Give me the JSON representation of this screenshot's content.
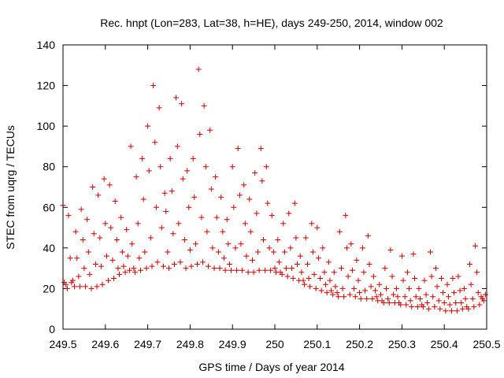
{
  "chart_data": {
    "type": "scatter",
    "title": "Rec. hnpt (Lon=283, Lat=38, h=HE), days 249-250, 2014, window 002",
    "xlabel": "GPS time / Days of year 2014",
    "ylabel": "STEC from uqrg / TECUs",
    "xlim": [
      249.5,
      250.5
    ],
    "ylim": [
      0,
      140
    ],
    "xticks": [
      249.5,
      249.6,
      249.7,
      249.8,
      249.9,
      250,
      250.1,
      250.2,
      250.3,
      250.4,
      250.5
    ],
    "xtick_labels": [
      "249.5",
      "249.6",
      "249.7",
      "249.8",
      "249.9",
      "250",
      "250.1",
      "250.2",
      "250.3",
      "250.4",
      "250.5"
    ],
    "yticks": [
      0,
      20,
      40,
      60,
      80,
      100,
      120,
      140
    ],
    "ytick_labels": [
      "0",
      "20",
      "40",
      "60",
      "80",
      "100",
      "120",
      "140"
    ],
    "grid": false,
    "marker": "+",
    "color": "#cc0000",
    "series": [
      {
        "name": "STEC",
        "points": [
          [
            249.5,
            61
          ],
          [
            249.503,
            23
          ],
          [
            249.507,
            22
          ],
          [
            249.51,
            20
          ],
          [
            249.513,
            56
          ],
          [
            249.517,
            35
          ],
          [
            249.52,
            23
          ],
          [
            249.523,
            24
          ],
          [
            249.527,
            21
          ],
          [
            249.53,
            48
          ],
          [
            249.533,
            35
          ],
          [
            249.537,
            26
          ],
          [
            249.54,
            21
          ],
          [
            249.543,
            59
          ],
          [
            249.547,
            44
          ],
          [
            249.55,
            30
          ],
          [
            249.553,
            21
          ],
          [
            249.557,
            54
          ],
          [
            249.56,
            38
          ],
          [
            249.563,
            27
          ],
          [
            249.567,
            20
          ],
          [
            249.57,
            70
          ],
          [
            249.573,
            47
          ],
          [
            249.577,
            32
          ],
          [
            249.58,
            21
          ],
          [
            249.583,
            66
          ],
          [
            249.587,
            45
          ],
          [
            249.59,
            31
          ],
          [
            249.593,
            22
          ],
          [
            249.597,
            74
          ],
          [
            249.6,
            52
          ],
          [
            249.603,
            36
          ],
          [
            249.607,
            24
          ],
          [
            249.61,
            71
          ],
          [
            249.613,
            50
          ],
          [
            249.617,
            34
          ],
          [
            249.62,
            25
          ],
          [
            249.623,
            63
          ],
          [
            249.627,
            44
          ],
          [
            249.63,
            30
          ],
          [
            249.633,
            27
          ],
          [
            249.637,
            55
          ],
          [
            249.64,
            38
          ],
          [
            249.643,
            31
          ],
          [
            249.647,
            28
          ],
          [
            249.65,
            49
          ],
          [
            249.653,
            36
          ],
          [
            249.657,
            29
          ],
          [
            249.66,
            90
          ],
          [
            249.663,
            42
          ],
          [
            249.667,
            30
          ],
          [
            249.67,
            28
          ],
          [
            249.673,
            75
          ],
          [
            249.677,
            52
          ],
          [
            249.68,
            35
          ],
          [
            249.683,
            29
          ],
          [
            249.687,
            84
          ],
          [
            249.69,
            64
          ],
          [
            249.693,
            38
          ],
          [
            249.697,
            30
          ],
          [
            249.7,
            100
          ],
          [
            249.703,
            78
          ],
          [
            249.707,
            45
          ],
          [
            249.71,
            31
          ],
          [
            249.713,
            120
          ],
          [
            249.717,
            92
          ],
          [
            249.72,
            60
          ],
          [
            249.723,
            33
          ],
          [
            249.727,
            109
          ],
          [
            249.73,
            80
          ],
          [
            249.733,
            50
          ],
          [
            249.737,
            31
          ],
          [
            249.74,
            67
          ],
          [
            249.743,
            58
          ],
          [
            249.747,
            38
          ],
          [
            249.75,
            30
          ],
          [
            249.753,
            84
          ],
          [
            249.757,
            68
          ],
          [
            249.76,
            47
          ],
          [
            249.763,
            32
          ],
          [
            249.767,
            114
          ],
          [
            249.77,
            90
          ],
          [
            249.773,
            52
          ],
          [
            249.777,
            33
          ],
          [
            249.78,
            111
          ],
          [
            249.783,
            74
          ],
          [
            249.787,
            44
          ],
          [
            249.79,
            30
          ],
          [
            249.793,
            78
          ],
          [
            249.797,
            60
          ],
          [
            249.8,
            39
          ],
          [
            249.803,
            31
          ],
          [
            249.807,
            84
          ],
          [
            249.81,
            65
          ],
          [
            249.813,
            42
          ],
          [
            249.817,
            32
          ],
          [
            249.82,
            128
          ],
          [
            249.823,
            96
          ],
          [
            249.827,
            55
          ],
          [
            249.83,
            33
          ],
          [
            249.833,
            110
          ],
          [
            249.837,
            80
          ],
          [
            249.84,
            48
          ],
          [
            249.843,
            31
          ],
          [
            249.847,
            98
          ],
          [
            249.85,
            69
          ],
          [
            249.853,
            40
          ],
          [
            249.857,
            30
          ],
          [
            249.86,
            75
          ],
          [
            249.863,
            55
          ],
          [
            249.867,
            38
          ],
          [
            249.87,
            30
          ],
          [
            249.873,
            65
          ],
          [
            249.877,
            48
          ],
          [
            249.88,
            35
          ],
          [
            249.883,
            29
          ],
          [
            249.887,
            54
          ],
          [
            249.89,
            42
          ],
          [
            249.893,
            32
          ],
          [
            249.897,
            29
          ],
          [
            249.9,
            80
          ],
          [
            249.903,
            60
          ],
          [
            249.907,
            40
          ],
          [
            249.91,
            29
          ],
          [
            249.913,
            89
          ],
          [
            249.917,
            66
          ],
          [
            249.92,
            42
          ],
          [
            249.923,
            29
          ],
          [
            249.927,
            71
          ],
          [
            249.93,
            52
          ],
          [
            249.933,
            36
          ],
          [
            249.937,
            28
          ],
          [
            249.94,
            64
          ],
          [
            249.943,
            48
          ],
          [
            249.947,
            34
          ],
          [
            249.95,
            28
          ],
          [
            249.953,
            77
          ],
          [
            249.957,
            57
          ],
          [
            249.96,
            38
          ],
          [
            249.963,
            29
          ],
          [
            249.967,
            89
          ],
          [
            249.97,
            73
          ],
          [
            249.973,
            44
          ],
          [
            249.977,
            29
          ],
          [
            249.98,
            80
          ],
          [
            249.983,
            62
          ],
          [
            249.987,
            40
          ],
          [
            249.99,
            29
          ],
          [
            249.993,
            56
          ],
          [
            249.997,
            38
          ],
          [
            250.0,
            30
          ],
          [
            250.003,
            28
          ],
          [
            250.007,
            44
          ],
          [
            250.01,
            33
          ],
          [
            250.013,
            28
          ],
          [
            250.017,
            27
          ],
          [
            250.02,
            52
          ],
          [
            250.023,
            38
          ],
          [
            250.027,
            30
          ],
          [
            250.03,
            26
          ],
          [
            250.033,
            57
          ],
          [
            250.037,
            40
          ],
          [
            250.04,
            30
          ],
          [
            250.043,
            25
          ],
          [
            250.047,
            62
          ],
          [
            250.05,
            45
          ],
          [
            250.053,
            32
          ],
          [
            250.057,
            24
          ],
          [
            250.06,
            36
          ],
          [
            250.063,
            28
          ],
          [
            250.067,
            24
          ],
          [
            250.07,
            22
          ],
          [
            250.073,
            45
          ],
          [
            250.077,
            32
          ],
          [
            250.08,
            25
          ],
          [
            250.083,
            21
          ],
          [
            250.087,
            52
          ],
          [
            250.09,
            38
          ],
          [
            250.093,
            27
          ],
          [
            250.097,
            20
          ],
          [
            250.1,
            50
          ],
          [
            250.103,
            35
          ],
          [
            250.107,
            25
          ],
          [
            250.11,
            19
          ],
          [
            250.113,
            40
          ],
          [
            250.117,
            28
          ],
          [
            250.12,
            22
          ],
          [
            250.123,
            18
          ],
          [
            250.127,
            33
          ],
          [
            250.13,
            24
          ],
          [
            250.133,
            19
          ],
          [
            250.137,
            17
          ],
          [
            250.14,
            28
          ],
          [
            250.143,
            21
          ],
          [
            250.147,
            18
          ],
          [
            250.15,
            16
          ],
          [
            250.153,
            48
          ],
          [
            250.157,
            30
          ],
          [
            250.16,
            20
          ],
          [
            250.163,
            16
          ],
          [
            250.167,
            56
          ],
          [
            250.17,
            40
          ],
          [
            250.173,
            26
          ],
          [
            250.177,
            17
          ],
          [
            250.18,
            42
          ],
          [
            250.183,
            29
          ],
          [
            250.187,
            20
          ],
          [
            250.19,
            16
          ],
          [
            250.193,
            34
          ],
          [
            250.197,
            24
          ],
          [
            250.2,
            18
          ],
          [
            250.203,
            15
          ],
          [
            250.207,
            40
          ],
          [
            250.21,
            28
          ],
          [
            250.213,
            19
          ],
          [
            250.217,
            15
          ],
          [
            250.22,
            46
          ],
          [
            250.223,
            32
          ],
          [
            250.227,
            21
          ],
          [
            250.23,
            15
          ],
          [
            250.233,
            26
          ],
          [
            250.237,
            19
          ],
          [
            250.24,
            16
          ],
          [
            250.243,
            14
          ],
          [
            250.247,
            22
          ],
          [
            250.25,
            17
          ],
          [
            250.253,
            14
          ],
          [
            250.257,
            13
          ],
          [
            250.26,
            30
          ],
          [
            250.263,
            20
          ],
          [
            250.267,
            15
          ],
          [
            250.27,
            13
          ],
          [
            250.273,
            39
          ],
          [
            250.277,
            26
          ],
          [
            250.28,
            17
          ],
          [
            250.283,
            13
          ],
          [
            250.287,
            20
          ],
          [
            250.29,
            16
          ],
          [
            250.293,
            13
          ],
          [
            250.297,
            12
          ],
          [
            250.3,
            36
          ],
          [
            250.303,
            24
          ],
          [
            250.307,
            16
          ],
          [
            250.31,
            12
          ],
          [
            250.313,
            28
          ],
          [
            250.317,
            20
          ],
          [
            250.32,
            14
          ],
          [
            250.323,
            11
          ],
          [
            250.327,
            37
          ],
          [
            250.33,
            25
          ],
          [
            250.333,
            16
          ],
          [
            250.337,
            11
          ],
          [
            250.34,
            20
          ],
          [
            250.343,
            15
          ],
          [
            250.347,
            12
          ],
          [
            250.35,
            11
          ],
          [
            250.353,
            24
          ],
          [
            250.357,
            17
          ],
          [
            250.36,
            13
          ],
          [
            250.363,
            10
          ],
          [
            250.367,
            38
          ],
          [
            250.37,
            26
          ],
          [
            250.373,
            16
          ],
          [
            250.377,
            11
          ],
          [
            250.38,
            30
          ],
          [
            250.383,
            21
          ],
          [
            250.387,
            14
          ],
          [
            250.39,
            10
          ],
          [
            250.393,
            25
          ],
          [
            250.397,
            18
          ],
          [
            250.4,
            13
          ],
          [
            250.403,
            9
          ],
          [
            250.407,
            22
          ],
          [
            250.41,
            16
          ],
          [
            250.413,
            12
          ],
          [
            250.417,
            9
          ],
          [
            250.42,
            25
          ],
          [
            250.423,
            18
          ],
          [
            250.427,
            13
          ],
          [
            250.43,
            9
          ],
          [
            250.433,
            26
          ],
          [
            250.437,
            19
          ],
          [
            250.44,
            13
          ],
          [
            250.443,
            10
          ],
          [
            250.447,
            20
          ],
          [
            250.45,
            15
          ],
          [
            250.453,
            11
          ],
          [
            250.457,
            10
          ],
          [
            250.46,
            32
          ],
          [
            250.463,
            22
          ],
          [
            250.467,
            15
          ],
          [
            250.47,
            11
          ],
          [
            250.473,
            41
          ],
          [
            250.477,
            28
          ],
          [
            250.48,
            18
          ],
          [
            250.483,
            12
          ],
          [
            250.487,
            16
          ],
          [
            250.49,
            15
          ],
          [
            250.493,
            14
          ],
          [
            250.497,
            17
          ]
        ]
      }
    ]
  }
}
